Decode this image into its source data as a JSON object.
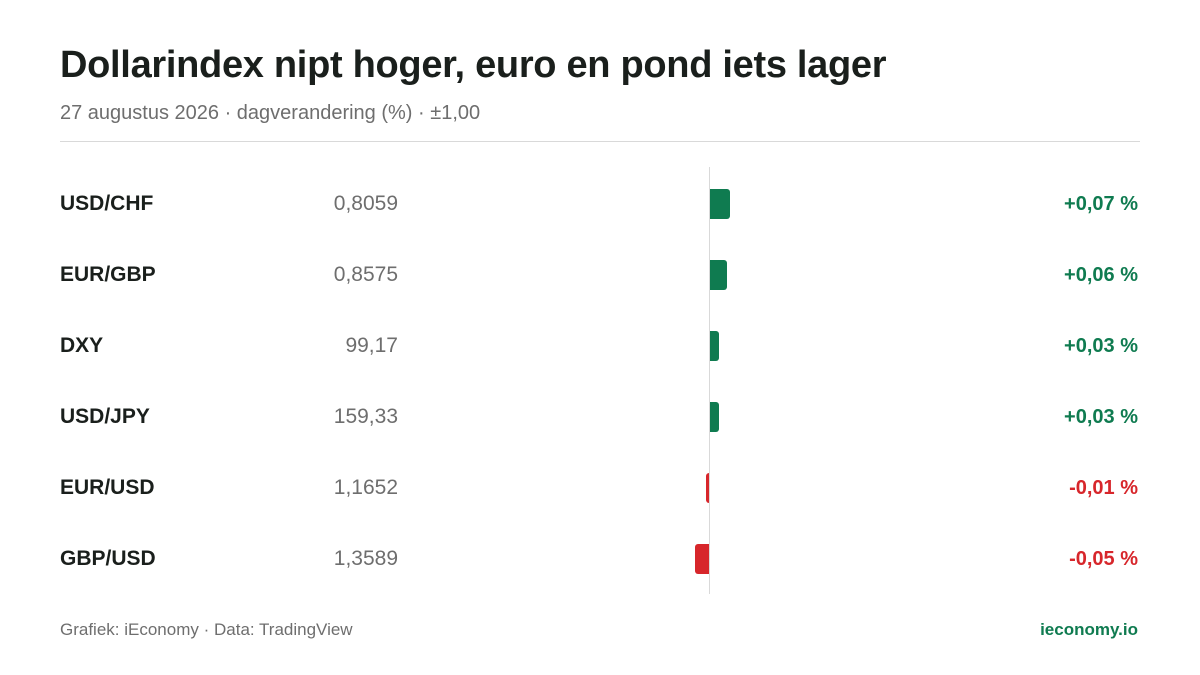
{
  "header": {
    "title": "Dollarindex nipt hoger, euro en pond iets lager",
    "subtitle": "27 augustus 2026 · dagverandering (%) · ±1,00"
  },
  "footer": {
    "source": "Grafiek: iEconomy · Data: TradingView",
    "brand": "ieconomy.io"
  },
  "colors": {
    "positive": "#0f7b50",
    "negative": "#d7262b",
    "axis": "#d9d9d9"
  },
  "chart_data": {
    "type": "bar",
    "orientation": "horizontal",
    "title": "Dollarindex nipt hoger, euro en pond iets lager",
    "subtitle": "27 augustus 2026 · dagverandering (%) · ±1,00",
    "xlim": [
      -1.0,
      1.0
    ],
    "unit": "%",
    "grid": false,
    "categories": [
      "USD/CHF",
      "EUR/GBP",
      "DXY",
      "USD/JPY",
      "EUR/USD",
      "GBP/USD"
    ],
    "values": [
      0.07,
      0.06,
      0.03,
      0.03,
      -0.01,
      -0.05
    ],
    "rows": [
      {
        "pair": "USD/CHF",
        "price": "0,8059",
        "change": 0.07,
        "change_label": "+0,07 %"
      },
      {
        "pair": "EUR/GBP",
        "price": "0,8575",
        "change": 0.06,
        "change_label": "+0,06 %"
      },
      {
        "pair": "DXY",
        "price": "99,17",
        "change": 0.03,
        "change_label": "+0,03 %"
      },
      {
        "pair": "USD/JPY",
        "price": "159,33",
        "change": 0.03,
        "change_label": "+0,03 %"
      },
      {
        "pair": "EUR/USD",
        "price": "1,1652",
        "change": -0.01,
        "change_label": "-0,01 %"
      },
      {
        "pair": "GBP/USD",
        "price": "1,3589",
        "change": -0.05,
        "change_label": "-0,05 %"
      }
    ]
  }
}
